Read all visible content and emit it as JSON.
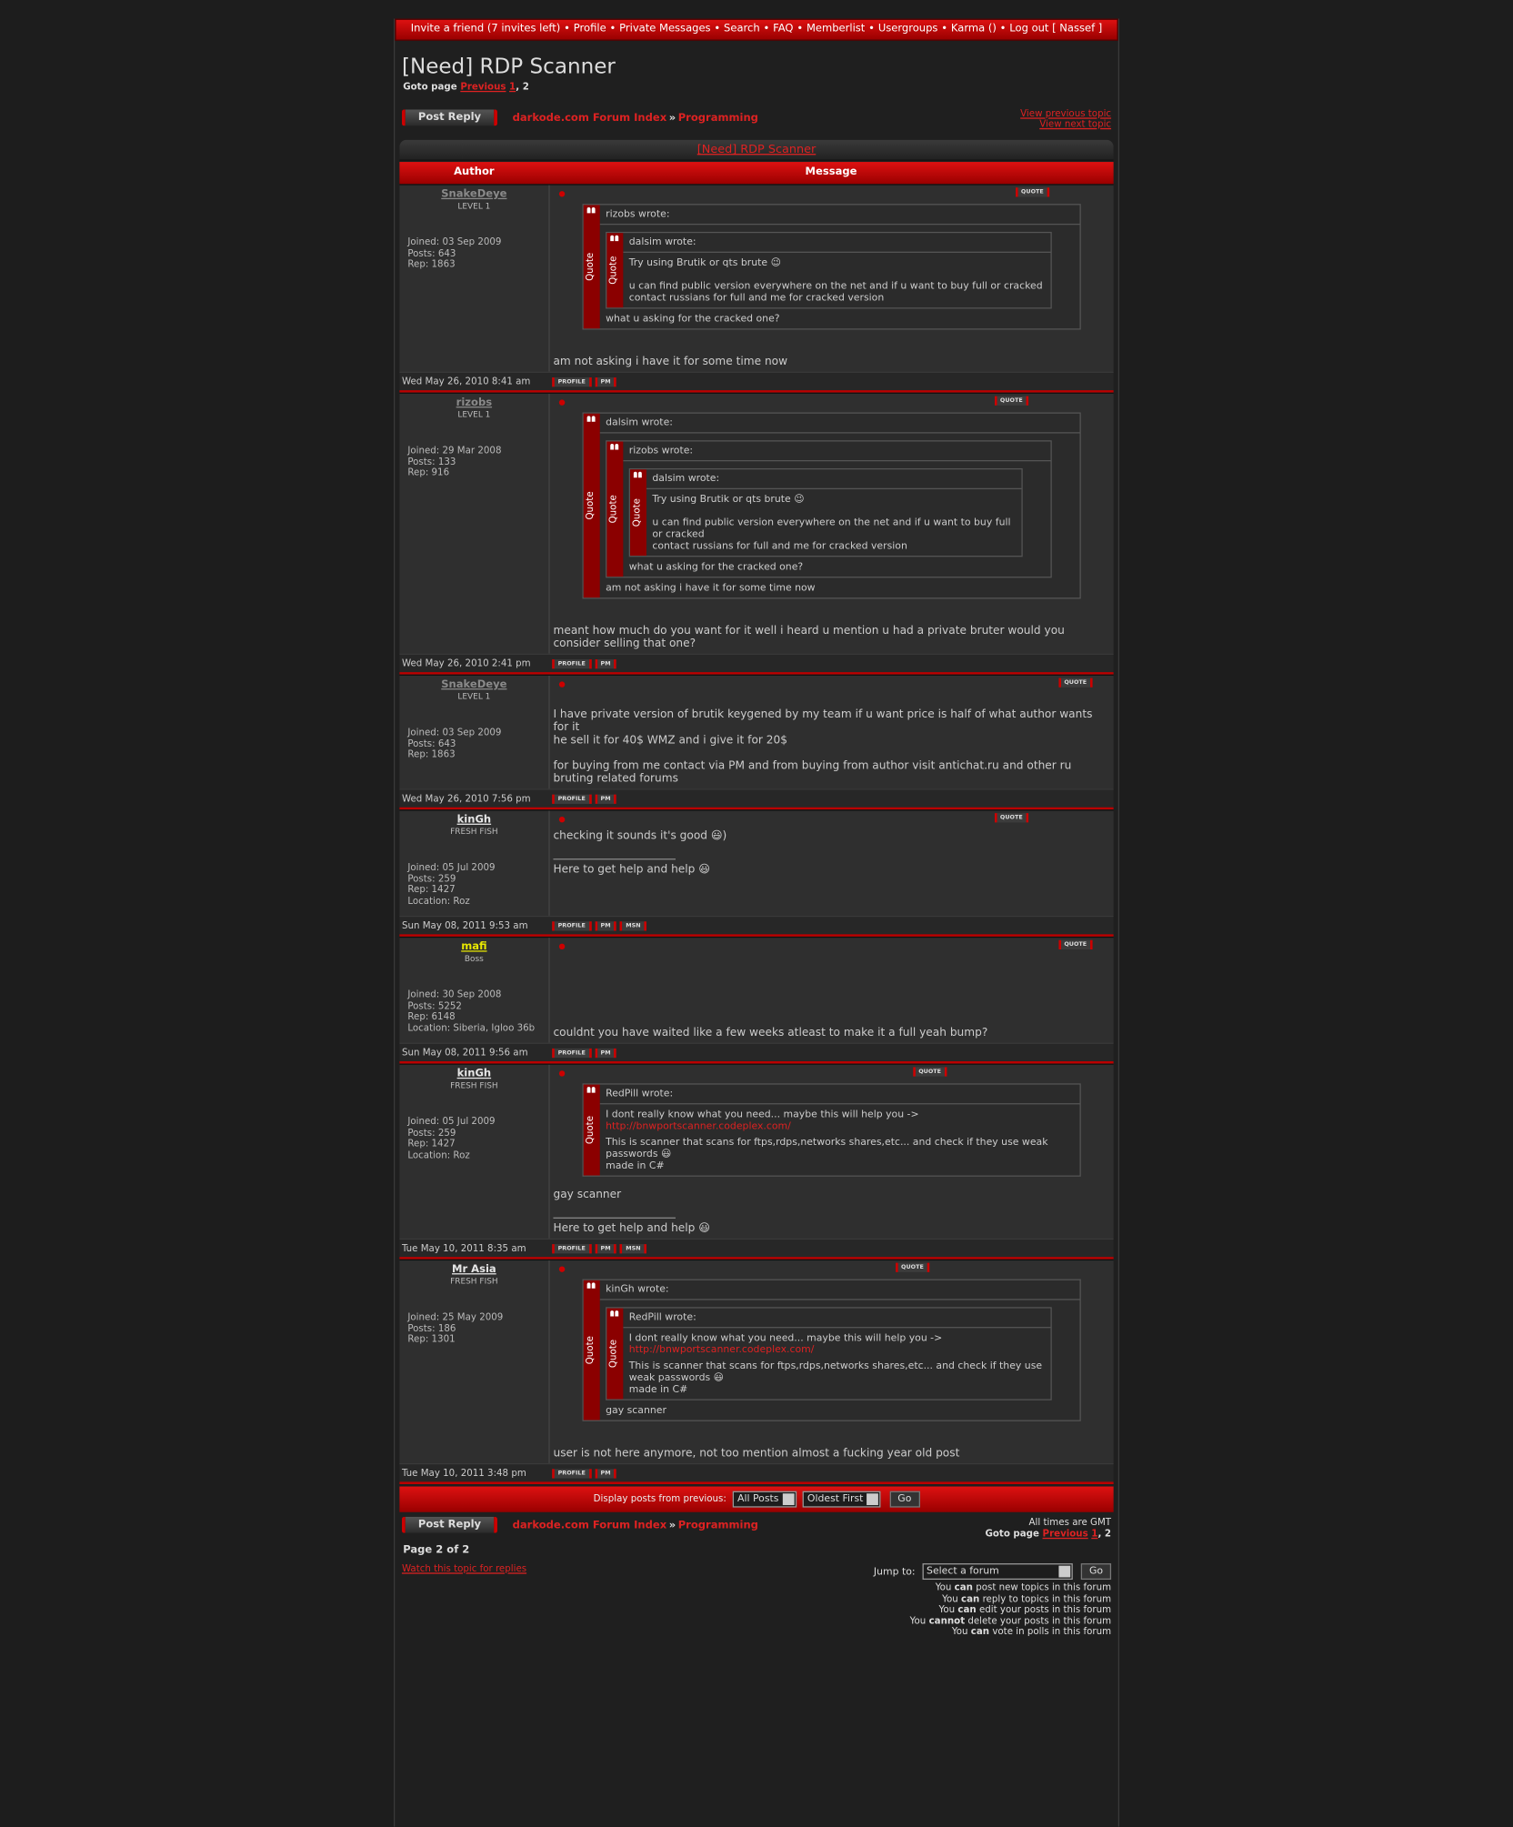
{
  "nav": {
    "items": [
      "Invite a friend (7 invites left)",
      "Profile",
      "Private Messages",
      "Search",
      "FAQ",
      "Memberlist",
      "Usergroups",
      "Karma ()",
      "Log out [ Nassef ]"
    ],
    "separator": "•"
  },
  "title": "[Need] RDP Scanner",
  "goto": {
    "label": "Goto page",
    "previous": "Previous",
    "pages": [
      1,
      2
    ],
    "separator": ","
  },
  "post_reply": "Post Reply",
  "breadcrumb": {
    "forum_index": "darkode.com Forum Index",
    "separator": "»",
    "forum": "Programming"
  },
  "topic_nav": {
    "previous": "View previous topic",
    "next": "View next topic"
  },
  "topic_link": "[Need] RDP Scanner",
  "headers": {
    "author": "Author",
    "message": "Message"
  },
  "quote_button": "QUOTE",
  "posts": [
    {
      "author": "SnakeDeye",
      "name_color": "#8a8a8a",
      "rank": "LEVEL 1",
      "info": [
        "Joined: 03 Sep 2009",
        "Posts: 643",
        "Rep: 1863"
      ],
      "date": "Wed May 26, 2010 8:41 am",
      "buttons": [
        "PROFILE",
        "PM"
      ],
      "body": [
        {
          "quote_author": "rizobs wrote:",
          "quote_label": "Quote",
          "body": [
            {
              "quote_author": "dalsim wrote:",
              "quote_label": "Quote",
              "body": [
                "Try using Brutik or qts brute 😉\n\nu can find public version everywhere on the net and if u want to buy full or cracked\ncontact russians for full and me for cracked version"
              ]
            },
            "what u asking for the cracked one?"
          ]
        },
        "am not asking i have it for some time now"
      ]
    },
    {
      "author": "rizobs",
      "name_color": "#8a8a8a",
      "rank": "LEVEL 1",
      "info": [
        "Joined: 29 Mar 2008",
        "Posts: 133",
        "Rep: 916"
      ],
      "date": "Wed May 26, 2010 2:41 pm",
      "buttons": [
        "PROFILE",
        "PM"
      ],
      "body": [
        {
          "quote_author": "dalsim wrote:",
          "quote_label": "Quote",
          "body": [
            {
              "quote_author": "rizobs wrote:",
              "quote_label": "Quote",
              "body": [
                {
                  "quote_author": "dalsim wrote:",
                  "quote_label": "Quote",
                  "body": [
                    "Try using Brutik or qts brute 😉\n\nu can find public version everywhere on the net and if u want to buy full or cracked\ncontact russians for full and me for cracked version"
                  ]
                },
                "what u asking for the cracked one?"
              ]
            },
            "am not asking i have it for some time now"
          ]
        },
        "meant how much do you want for it well i heard u mention u had a private bruter would you consider selling that one?"
      ]
    },
    {
      "author": "SnakeDeye",
      "name_color": "#8a8a8a",
      "rank": "LEVEL 1",
      "info": [
        "Joined: 03 Sep 2009",
        "Posts: 643",
        "Rep: 1863"
      ],
      "date": "Wed May 26, 2010 7:56 pm",
      "buttons": [
        "PROFILE",
        "PM"
      ],
      "body": [
        "I have private version of brutik keygened by my team if u want price is half of what author wants for it\nhe sell it for 40$ WMZ and i give it for 20$\n\nfor buying from me contact via PM and from buying from author visit antichat.ru and other ru bruting related forums"
      ]
    },
    {
      "author": "kinGh",
      "name_color": "#e6e6e6",
      "rank": "FRESH FISH",
      "info": [
        "Joined: 05 Jul 2009",
        "Posts: 259",
        "Rep: 1427",
        "Location: Roz"
      ],
      "date": "Sun May 08, 2011 9:53 am",
      "buttons": [
        "PROFILE",
        "PM",
        "MSN"
      ],
      "body": [
        "checking it sounds it's good 😃)",
        {
          "signature": "Here to get help and help 😃"
        }
      ]
    },
    {
      "author": "mafi",
      "name_color": "#e8e800",
      "rank": "Boss",
      "info": [
        "Joined: 30 Sep 2008",
        "Posts: 5252",
        "Rep: 6148",
        "Location: Siberia, Igloo 36b"
      ],
      "date": "Sun May 08, 2011 9:56 am",
      "buttons": [
        "PROFILE",
        "PM"
      ],
      "body": [
        "couldnt you have waited like a few weeks atleast to make it a full yeah bump?"
      ]
    },
    {
      "author": "kinGh",
      "name_color": "#e6e6e6",
      "rank": "FRESH FISH",
      "info": [
        "Joined: 05 Jul 2009",
        "Posts: 259",
        "Rep: 1427",
        "Location: Roz"
      ],
      "date": "Tue May 10, 2011 8:35 am",
      "buttons": [
        "PROFILE",
        "PM",
        "MSN"
      ],
      "body": [
        {
          "quote_author": "RedPill wrote:",
          "quote_label": "Quote",
          "body": [
            "I dont really know what you need... maybe this will help you ->",
            {
              "link": "http://bnwportscanner.codeplex.com/"
            },
            "This is scanner that scans for ftps,rdps,networks shares,etc... and check if they use weak passwords 😃\nmade in C#"
          ]
        },
        "gay scanner",
        {
          "signature": "Here to get help and help 😃"
        }
      ]
    },
    {
      "author": "Mr Asia",
      "name_color": "#e6e6e6",
      "rank": "FRESH FISH",
      "info": [
        "Joined: 25 May 2009",
        "Posts: 186",
        "Rep: 1301"
      ],
      "date": "Tue May 10, 2011 3:48 pm",
      "buttons": [
        "PROFILE",
        "PM"
      ],
      "body": [
        {
          "quote_author": "kinGh wrote:",
          "quote_label": "Quote",
          "body": [
            {
              "quote_author": "RedPill wrote:",
              "quote_label": "Quote",
              "body": [
                "I dont really know what you need... maybe this will help you ->",
                {
                  "link": "http://bnwportscanner.codeplex.com/"
                },
                "This is scanner that scans for ftps,rdps,networks shares,etc... and check if they use weak passwords 😃\nmade in C#"
              ]
            },
            "gay scanner"
          ]
        },
        "user is not here anymore, not too mention almost a fucking year old post"
      ]
    }
  ],
  "display": {
    "label": "Display posts from previous:",
    "period": "All Posts",
    "order": "Oldest First",
    "go": "Go"
  },
  "timezone": "All times are GMT",
  "page_info": "Page 2 of 2",
  "watch": "Watch this topic for replies",
  "jump": {
    "label": "Jump to:",
    "select": "Select a forum",
    "go": "Go"
  },
  "permissions": [
    {
      "pre": "You",
      "bold": "can",
      "post": "post new topics in this forum"
    },
    {
      "pre": "You",
      "bold": "can",
      "post": "reply to topics in this forum"
    },
    {
      "pre": "You",
      "bold": "can",
      "post": "edit your posts in this forum"
    },
    {
      "pre": "You",
      "bold": "cannot",
      "post": "delete your posts in this forum"
    },
    {
      "pre": "You",
      "bold": "can",
      "post": "vote in polls in this forum"
    }
  ]
}
